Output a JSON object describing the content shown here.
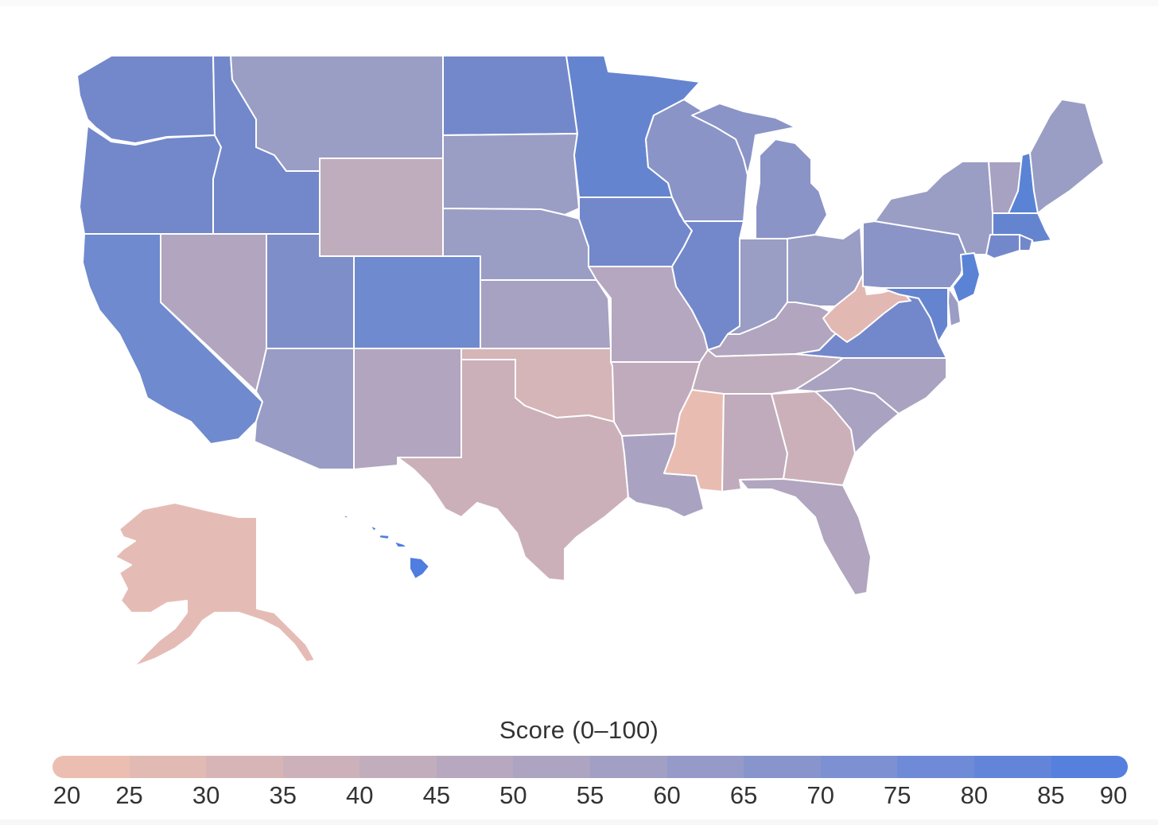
{
  "legend": {
    "title": "Score (0–100)",
    "ticks": [
      "20",
      "25",
      "30",
      "35",
      "40",
      "45",
      "50",
      "55",
      "60",
      "65",
      "70",
      "75",
      "80",
      "85",
      "90"
    ],
    "min": 20,
    "max": 90,
    "low_color": "#f1c0b0",
    "mid_color": "#a8a2c3",
    "high_color": "#4f7de0"
  },
  "map": {
    "type": "choropleth",
    "region": "United States",
    "colors": {
      "WA": "#7388cb",
      "OR": "#7388cb",
      "CA": "#6f8ace",
      "ID": "#7388cb",
      "NV": "#b1a5bf",
      "UT": "#7e8ec8",
      "AZ": "#999cc4",
      "MT": "#9a9dc4",
      "WY": "#bfadbd",
      "CO": "#6f8ace",
      "NM": "#b1a5bf",
      "ND": "#7388cb",
      "SD": "#9a9dc4",
      "NE": "#9a9dc4",
      "KS": "#a7a1c2",
      "OK": "#d5b5b8",
      "TX": "#cbb0ba",
      "MN": "#6584d0",
      "IA": "#7388cb",
      "MO": "#b4a7bf",
      "AR": "#c0abbc",
      "LA": "#aaa2c1",
      "WI": "#8b94c7",
      "IL": "#7388cb",
      "MI": "#8b94c7",
      "IN": "#9a9dc4",
      "OH": "#9a9dc4",
      "KY": "#b1a5bf",
      "TN": "#bfadbd",
      "MS": "#e9bcb2",
      "AL": "#c0abbc",
      "GA": "#cbb0ba",
      "FL": "#b1a5bf",
      "SC": "#aaa2c1",
      "NC": "#aaa2c1",
      "VA": "#7388cb",
      "WV": "#e2b8b3",
      "PA": "#8b94c7",
      "NY": "#9a9dc4",
      "VT": "#a7a1c2",
      "NH": "#5a83d6",
      "ME": "#9a9dc4",
      "MA": "#6584d0",
      "CT": "#7388cb",
      "RI": "#7388cb",
      "NJ": "#5a83d6",
      "DE": "#9a9dc4",
      "MD": "#6584d0",
      "AK": "#e5bcb5",
      "HI": "#4f7de0"
    }
  }
}
